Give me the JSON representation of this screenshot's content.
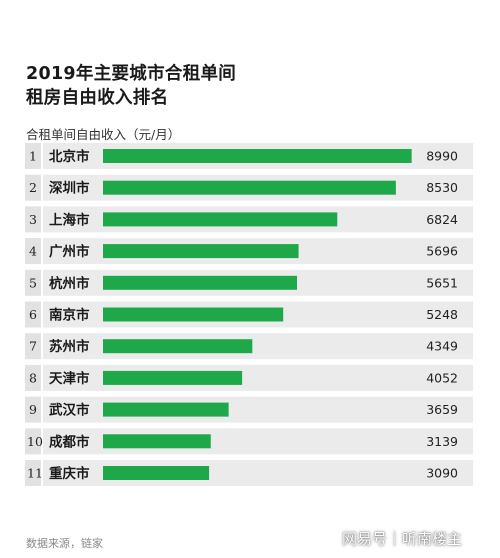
{
  "title_lines": [
    "2019年主要城市合租单间",
    "租房自由收入排名"
  ],
  "subtitle": "合租单间自由收入（元/月）",
  "source": "数据来源，链家",
  "brand": "网易号｜听南楼主",
  "colors": {
    "bar": "#1ea84a",
    "row_bg": "#ebebeb",
    "rank_bg": "#e2e2e2"
  },
  "chart_data": {
    "type": "bar",
    "orientation": "horizontal",
    "title": "2019年主要城市合租单间租房自由收入排名",
    "ylabel": "合租单间自由收入（元/月）",
    "ranks": [
      "1",
      "2",
      "3",
      "4",
      "5",
      "6",
      "7",
      "8",
      "9",
      "10",
      "11"
    ],
    "categories": [
      "北京市",
      "深圳市",
      "上海市",
      "广州市",
      "杭州市",
      "南京市",
      "苏州市",
      "天津市",
      "武汉市",
      "成都市",
      "重庆市"
    ],
    "values": [
      8990,
      8530,
      6824,
      5696,
      5651,
      5248,
      4349,
      4052,
      3659,
      3139,
      3090
    ],
    "xlim": [
      0,
      9000
    ],
    "grid": false,
    "legend": "none"
  }
}
